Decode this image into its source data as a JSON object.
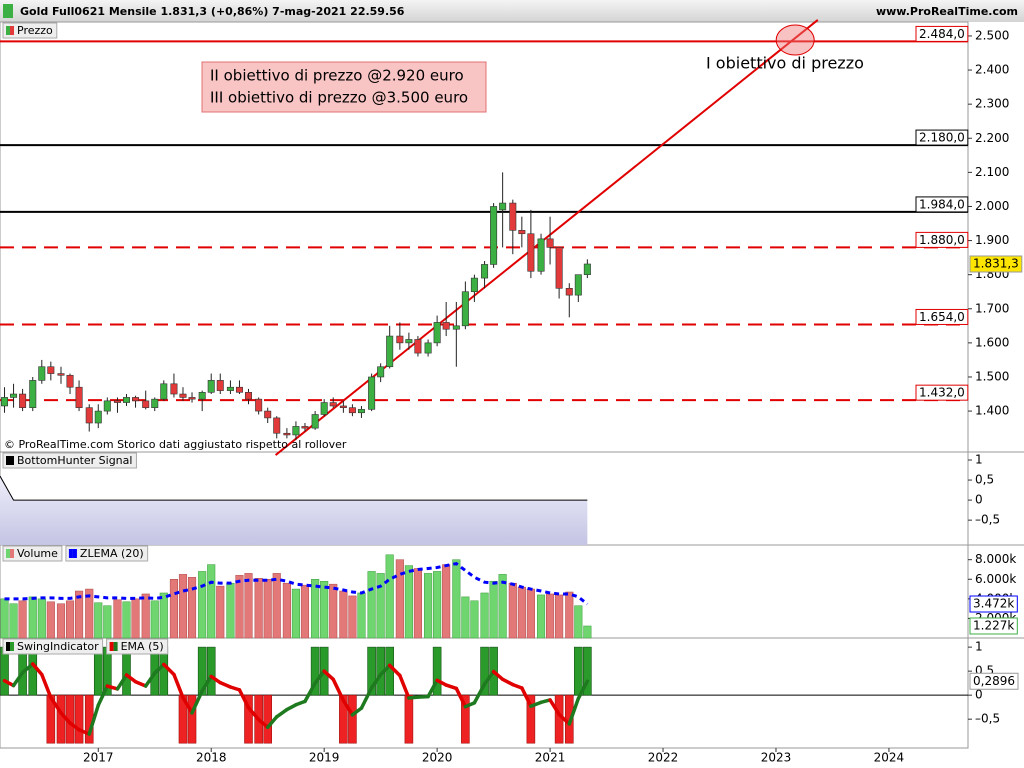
{
  "header": {
    "title": "Gold Full0621 Mensile 1.831,3 (+0,86%) 7-mag-2021 22.59.56",
    "site": "www.ProRealTime.com"
  },
  "chart_data": [
    {
      "type": "candlestick",
      "legend": "Prezzo",
      "x": [
        2016.17,
        2016.25,
        2016.33,
        2016.42,
        2016.5,
        2016.58,
        2016.67,
        2016.75,
        2016.83,
        2016.92,
        2017.0,
        2017.08,
        2017.17,
        2017.25,
        2017.33,
        2017.42,
        2017.5,
        2017.58,
        2017.67,
        2017.75,
        2017.83,
        2017.92,
        2018.0,
        2018.08,
        2018.17,
        2018.25,
        2018.33,
        2018.42,
        2018.5,
        2018.58,
        2018.67,
        2018.75,
        2018.83,
        2018.92,
        2019.0,
        2019.08,
        2019.17,
        2019.25,
        2019.33,
        2019.42,
        2019.5,
        2019.58,
        2019.67,
        2019.75,
        2019.83,
        2019.92,
        2020.0,
        2020.08,
        2020.17,
        2020.25,
        2020.33,
        2020.42,
        2020.5,
        2020.58,
        2020.67,
        2020.75,
        2020.83,
        2020.92,
        2021.0,
        2021.08,
        2021.17,
        2021.25,
        2021.33
      ],
      "open": [
        1415,
        1440,
        1450,
        1410,
        1490,
        1530,
        1510,
        1505,
        1470,
        1410,
        1365,
        1400,
        1430,
        1425,
        1440,
        1430,
        1410,
        1435,
        1480,
        1450,
        1440,
        1435,
        1455,
        1490,
        1460,
        1470,
        1455,
        1435,
        1400,
        1380,
        1335,
        1330,
        1355,
        1350,
        1390,
        1425,
        1415,
        1410,
        1395,
        1405,
        1500,
        1530,
        1620,
        1600,
        1610,
        1570,
        1600,
        1660,
        1640,
        1650,
        1750,
        1790,
        1830,
        1990,
        2010,
        1930,
        1920,
        1810,
        1905,
        1880,
        1760,
        1740,
        1800
      ],
      "high": [
        1470,
        1480,
        1465,
        1500,
        1550,
        1545,
        1530,
        1510,
        1490,
        1420,
        1420,
        1440,
        1440,
        1450,
        1445,
        1460,
        1440,
        1490,
        1510,
        1470,
        1455,
        1460,
        1510,
        1510,
        1490,
        1490,
        1465,
        1440,
        1410,
        1385,
        1350,
        1370,
        1365,
        1400,
        1435,
        1440,
        1430,
        1420,
        1415,
        1510,
        1540,
        1650,
        1660,
        1630,
        1620,
        1610,
        1680,
        1720,
        1720,
        1780,
        1800,
        1840,
        2010,
        2100,
        2020,
        1970,
        1990,
        1920,
        1970,
        1880,
        1775,
        1800,
        1845
      ],
      "low": [
        1395,
        1410,
        1400,
        1400,
        1480,
        1490,
        1480,
        1450,
        1400,
        1340,
        1350,
        1390,
        1395,
        1415,
        1410,
        1405,
        1400,
        1430,
        1440,
        1430,
        1425,
        1400,
        1450,
        1450,
        1450,
        1450,
        1420,
        1390,
        1365,
        1320,
        1320,
        1315,
        1340,
        1345,
        1385,
        1410,
        1395,
        1385,
        1380,
        1400,
        1485,
        1525,
        1580,
        1580,
        1560,
        1560,
        1590,
        1620,
        1530,
        1640,
        1720,
        1760,
        1820,
        1880,
        1860,
        1880,
        1790,
        1800,
        1830,
        1730,
        1675,
        1720,
        1790
      ],
      "close": [
        1440,
        1450,
        1410,
        1490,
        1530,
        1510,
        1505,
        1470,
        1410,
        1365,
        1400,
        1430,
        1425,
        1440,
        1430,
        1410,
        1435,
        1480,
        1450,
        1440,
        1435,
        1455,
        1490,
        1460,
        1470,
        1455,
        1435,
        1400,
        1380,
        1335,
        1330,
        1355,
        1350,
        1390,
        1425,
        1415,
        1410,
        1395,
        1405,
        1500,
        1530,
        1620,
        1600,
        1610,
        1570,
        1600,
        1660,
        1640,
        1650,
        1750,
        1790,
        1830,
        2000,
        2010,
        1930,
        1920,
        1810,
        1905,
        1880,
        1760,
        1740,
        1800,
        1831.3
      ],
      "up_color": "#3cb043",
      "down_color": "#e23a3a",
      "ylim": [
        1280,
        2494
      ],
      "yticks": [
        {
          "value": 1400,
          "label": "1.400"
        },
        {
          "value": 1500,
          "label": "1.500"
        },
        {
          "value": 1600,
          "label": "1.600"
        },
        {
          "value": 1700,
          "label": "1.700"
        },
        {
          "value": 1800,
          "label": "1.800"
        },
        {
          "value": 1900,
          "label": "1.900"
        },
        {
          "value": 2000,
          "label": "2.000"
        },
        {
          "value": 2100,
          "label": "2.100"
        },
        {
          "value": 2200,
          "label": "2.200"
        },
        {
          "value": 2300,
          "label": "2.300"
        },
        {
          "value": 2400,
          "label": "2.400"
        },
        {
          "value": 2500,
          "label": "2.500"
        }
      ],
      "last_label": "1.831,3",
      "levels": [
        {
          "value": 2484,
          "label": "2.484,0",
          "color": "#e00000",
          "style": "solid"
        },
        {
          "value": 2180,
          "label": "2.180,0",
          "color": "#000000",
          "style": "solid"
        },
        {
          "value": 1984,
          "label": "1.984,0",
          "color": "#000000",
          "style": "solid"
        },
        {
          "value": 1880,
          "label": "1.880,0",
          "color": "#e00000",
          "style": "dashed"
        },
        {
          "value": 1654,
          "label": "1.654,0",
          "color": "#e00000",
          "style": "dashed"
        },
        {
          "value": 1432,
          "label": "1.432,0",
          "color": "#e00000",
          "style": "dashed"
        }
      ],
      "trendline": {
        "x": [
          2018.57,
          2023.37
        ],
        "y": [
          1271,
          2547
        ],
        "color": "#e00000"
      },
      "highlight": {
        "x": 2023.17,
        "y": 2488
      },
      "annotation": "I obiettivo di prezzo",
      "note_box": [
        "II obiettivo di prezzo @2.920 euro",
        "III obiettivo di prezzo @3.500 euro"
      ],
      "footnote": "© ProRealTime.com  Storico dati aggiustato rispetto al rollover"
    },
    {
      "type": "line",
      "legend": "BottomHunter Signal",
      "color": "#000000",
      "values": [
        0.6,
        0,
        0,
        0,
        0,
        0,
        0,
        0,
        0,
        0,
        0,
        0,
        0,
        0,
        0,
        0,
        0,
        0,
        0,
        0,
        0,
        0,
        0,
        0,
        0,
        0,
        0,
        0,
        0,
        0,
        0,
        0,
        0,
        0,
        0,
        0,
        0,
        0,
        0,
        0,
        0,
        0,
        0,
        0,
        0,
        0,
        0,
        0,
        0,
        0,
        0,
        0,
        0,
        0,
        0,
        0,
        0,
        0,
        0,
        0,
        0,
        0,
        0
      ],
      "ylim": [
        -1.12,
        1.2
      ],
      "yticks": [
        1,
        {
          "value": 0.5,
          "label": "0,5"
        },
        0,
        {
          "value": -0.5,
          "label": "–0,5"
        }
      ]
    },
    {
      "type": "bar",
      "ylim": [
        0,
        9500
      ],
      "yticks": [
        {
          "value": 2000,
          "label": "2.000k"
        },
        {
          "value": 4000,
          "label": "4.000k"
        },
        {
          "value": 6000,
          "label": "6.000k"
        },
        {
          "value": 8000,
          "label": "8.000k"
        }
      ],
      "series": [
        {
          "name": "Volume",
          "type": "bar",
          "up_color": "#6fd66f",
          "down_color": "#e27878",
          "last_label": "1.227k",
          "values": [
            4000,
            3500,
            3800,
            4200,
            4000,
            3700,
            3500,
            3800,
            4800,
            5000,
            3600,
            3300,
            3900,
            3700,
            4000,
            4500,
            3800,
            4600,
            6000,
            6500,
            6200,
            6800,
            7500,
            5300,
            5600,
            6400,
            6600,
            6100,
            6000,
            6600,
            5600,
            5000,
            5400,
            6000,
            5800,
            5500,
            4800,
            4300,
            4600,
            6800,
            6600,
            8500,
            8000,
            7400,
            7100,
            6600,
            6800,
            7500,
            8000,
            4200,
            3800,
            4600,
            5800,
            6500,
            5600,
            5200,
            5000,
            4400,
            4500,
            4400,
            4700,
            3300,
            1227
          ]
        },
        {
          "name": "ZLEMA (20)",
          "type": "line",
          "color": "#0000ff",
          "last_label": "3.472k",
          "values": [
            4000,
            4000,
            4000,
            4050,
            4100,
            4100,
            4050,
            4050,
            4200,
            4300,
            4200,
            4100,
            4100,
            4050,
            4050,
            4100,
            4050,
            4150,
            4500,
            4800,
            5000,
            5300,
            5700,
            5600,
            5600,
            5800,
            5900,
            5900,
            5900,
            6000,
            5800,
            5500,
            5400,
            5300,
            5200,
            5100,
            4900,
            4700,
            4600,
            5000,
            5300,
            6000,
            6500,
            6800,
            7000,
            7100,
            7200,
            7400,
            7600,
            6900,
            6200,
            5700,
            5600,
            5700,
            5500,
            5200,
            5000,
            4800,
            4600,
            4500,
            4500,
            4200,
            3472
          ]
        }
      ]
    },
    {
      "type": "bar",
      "ylim": [
        -1.1,
        1.19
      ],
      "yticks": [
        1,
        {
          "value": 0.5,
          "label": "0,5"
        },
        0,
        {
          "value": -0.5,
          "label": "–0,5"
        }
      ],
      "xlim": [
        2016.13,
        2024.7
      ],
      "xticks": [
        2017,
        2018,
        2019,
        2020,
        2021,
        2022,
        2023,
        2024
      ],
      "series": [
        {
          "name": "SwingIndicator",
          "type": "bar",
          "up_color": "#2a9a2a",
          "down_color": "#ee2222",
          "values": [
            1,
            0,
            1,
            1,
            0,
            -1,
            -1,
            -1,
            -1,
            -1,
            1,
            1,
            0,
            1,
            0,
            0,
            1,
            1,
            0,
            -1,
            -1,
            1,
            1,
            0,
            0,
            0,
            -1,
            -1,
            -1,
            0,
            0,
            0,
            0,
            1,
            1,
            0,
            -1,
            -1,
            0,
            1,
            1,
            1,
            0,
            -1,
            0,
            0,
            1,
            0,
            0,
            -1,
            0,
            1,
            1,
            0,
            0,
            0,
            -1,
            0,
            0,
            -1,
            -1,
            1,
            1
          ]
        },
        {
          "name": "EMA (5)",
          "type": "line",
          "up_color": "#1e7a1e",
          "down_color": "#e00000",
          "last_label": "0,2896",
          "values": [
            0.3,
            0.2,
            0.47,
            0.65,
            0.43,
            -0.05,
            -0.37,
            -0.58,
            -0.72,
            -0.81,
            -0.21,
            0.19,
            0.13,
            0.42,
            0.28,
            0.19,
            0.46,
            0.64,
            0.43,
            -0.05,
            -0.37,
            0.09,
            0.39,
            0.26,
            0.17,
            0.11,
            -0.26,
            -0.51,
            -0.67,
            -0.45,
            -0.3,
            -0.2,
            -0.13,
            0.25,
            0.5,
            0.33,
            -0.11,
            -0.41,
            -0.27,
            0.15,
            0.43,
            0.62,
            0.41,
            -0.06,
            -0.04,
            -0.03,
            0.31,
            0.21,
            0.14,
            -0.24,
            -0.16,
            0.23,
            0.49,
            0.33,
            0.22,
            0.15,
            -0.23,
            -0.15,
            -0.1,
            -0.4,
            -0.6,
            -0.07,
            0.2896
          ]
        }
      ]
    }
  ]
}
